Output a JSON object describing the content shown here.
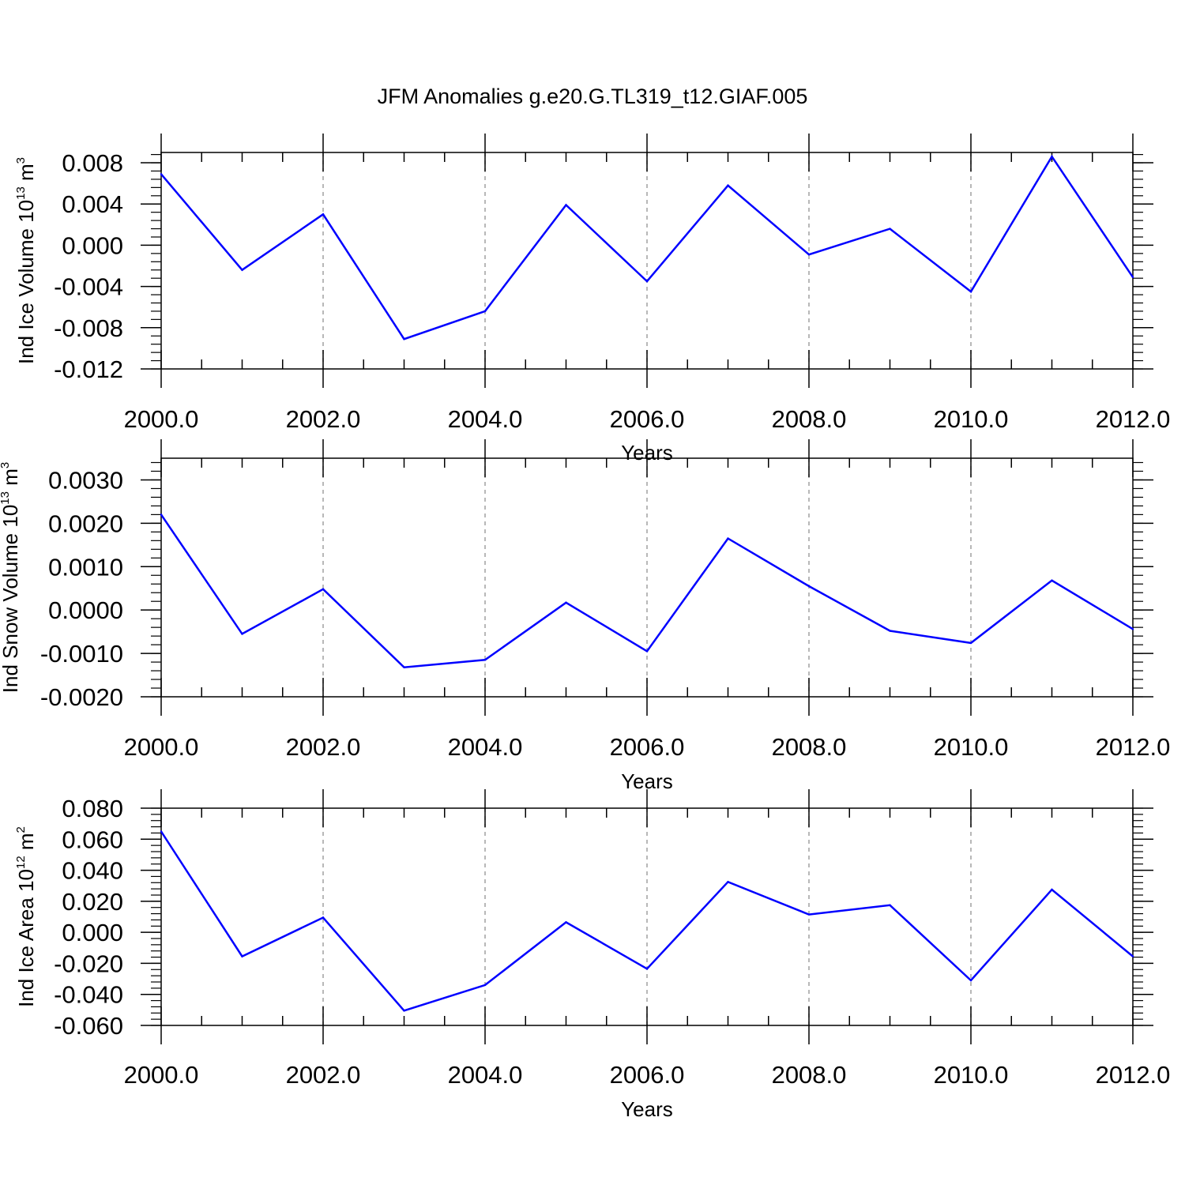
{
  "title": "JFM Anomalies g.e20.G.TL319_t12.GIAF.005",
  "colors": {
    "line": "#0000ff",
    "axis": "#000000",
    "grid": "#a0a0a0"
  },
  "chart_data": [
    {
      "type": "line",
      "ylabel_parts": {
        "main": "Ind Ice Volume 10",
        "exp": "13",
        "unit": " m",
        "unit_exp": "3"
      },
      "xlabel": "Years",
      "xlim": [
        2000,
        2012
      ],
      "ylim": [
        -0.012,
        0.009
      ],
      "x_ticks": [
        2000,
        2002,
        2004,
        2006,
        2008,
        2010,
        2012
      ],
      "x_tick_labels": [
        "2000.0",
        "2002.0",
        "2004.0",
        "2006.0",
        "2008.0",
        "2010.0",
        "2012.0"
      ],
      "y_ticks": [
        0.008,
        0.004,
        0.0,
        -0.004,
        -0.008,
        -0.012
      ],
      "y_tick_labels": [
        "0.008",
        "0.004",
        "0.000",
        "-0.004",
        "-0.008",
        "-0.012"
      ],
      "y_minor_step": 0.0008,
      "x": [
        2000,
        2001,
        2002,
        2003,
        2004,
        2005,
        2006,
        2007,
        2008,
        2009,
        2010,
        2011,
        2012
      ],
      "y": [
        0.0069,
        -0.0024,
        0.003,
        -0.0091,
        -0.0064,
        0.0039,
        -0.0035,
        0.0058,
        -0.0009,
        0.0016,
        -0.0045,
        0.0086,
        -0.0031
      ],
      "grid": "vertical dashed at major x ticks"
    },
    {
      "type": "line",
      "ylabel_parts": {
        "main": "Ind Snow Volume 10",
        "exp": "13",
        "unit": " m",
        "unit_exp": "3"
      },
      "xlabel": "Years",
      "xlim": [
        2000,
        2012
      ],
      "ylim": [
        -0.002,
        0.0035
      ],
      "x_ticks": [
        2000,
        2002,
        2004,
        2006,
        2008,
        2010,
        2012
      ],
      "x_tick_labels": [
        "2000.0",
        "2002.0",
        "2004.0",
        "2006.0",
        "2008.0",
        "2010.0",
        "2012.0"
      ],
      "y_ticks": [
        0.003,
        0.002,
        0.001,
        0.0,
        -0.001,
        -0.002
      ],
      "y_tick_labels": [
        "0.0030",
        "0.0020",
        "0.0010",
        "0.0000",
        "-0.0010",
        "-0.0020"
      ],
      "y_minor_step": 0.0002,
      "x": [
        2000,
        2001,
        2002,
        2003,
        2004,
        2005,
        2006,
        2007,
        2008,
        2009,
        2010,
        2011,
        2012
      ],
      "y": [
        0.0022,
        -0.00055,
        0.00048,
        -0.00132,
        -0.00115,
        0.00017,
        -0.00095,
        0.00165,
        0.00055,
        -0.00048,
        -0.00076,
        0.00068,
        -0.00044
      ],
      "grid": "vertical dashed at major x ticks"
    },
    {
      "type": "line",
      "ylabel_parts": {
        "main": "Ind Ice Area 10",
        "exp": "12",
        "unit": " m",
        "unit_exp": "2"
      },
      "xlabel": "Years",
      "xlim": [
        2000,
        2012
      ],
      "ylim": [
        -0.06,
        0.08
      ],
      "x_ticks": [
        2000,
        2002,
        2004,
        2006,
        2008,
        2010,
        2012
      ],
      "x_tick_labels": [
        "2000.0",
        "2002.0",
        "2004.0",
        "2006.0",
        "2008.0",
        "2010.0",
        "2012.0"
      ],
      "y_ticks": [
        0.08,
        0.06,
        0.04,
        0.02,
        0.0,
        -0.02,
        -0.04,
        -0.06
      ],
      "y_tick_labels": [
        "0.080",
        "0.060",
        "0.040",
        "0.020",
        "0.000",
        "-0.020",
        "-0.040",
        "-0.060"
      ],
      "y_minor_step": 0.004,
      "x": [
        2000,
        2001,
        2002,
        2003,
        2004,
        2005,
        2006,
        2007,
        2008,
        2009,
        2010,
        2011,
        2012
      ],
      "y": [
        0.065,
        -0.0155,
        0.0095,
        -0.0505,
        -0.034,
        0.0065,
        -0.0235,
        0.0325,
        0.0115,
        0.0175,
        -0.031,
        0.0275,
        -0.0155
      ],
      "grid": "vertical dashed at major x ticks"
    }
  ]
}
